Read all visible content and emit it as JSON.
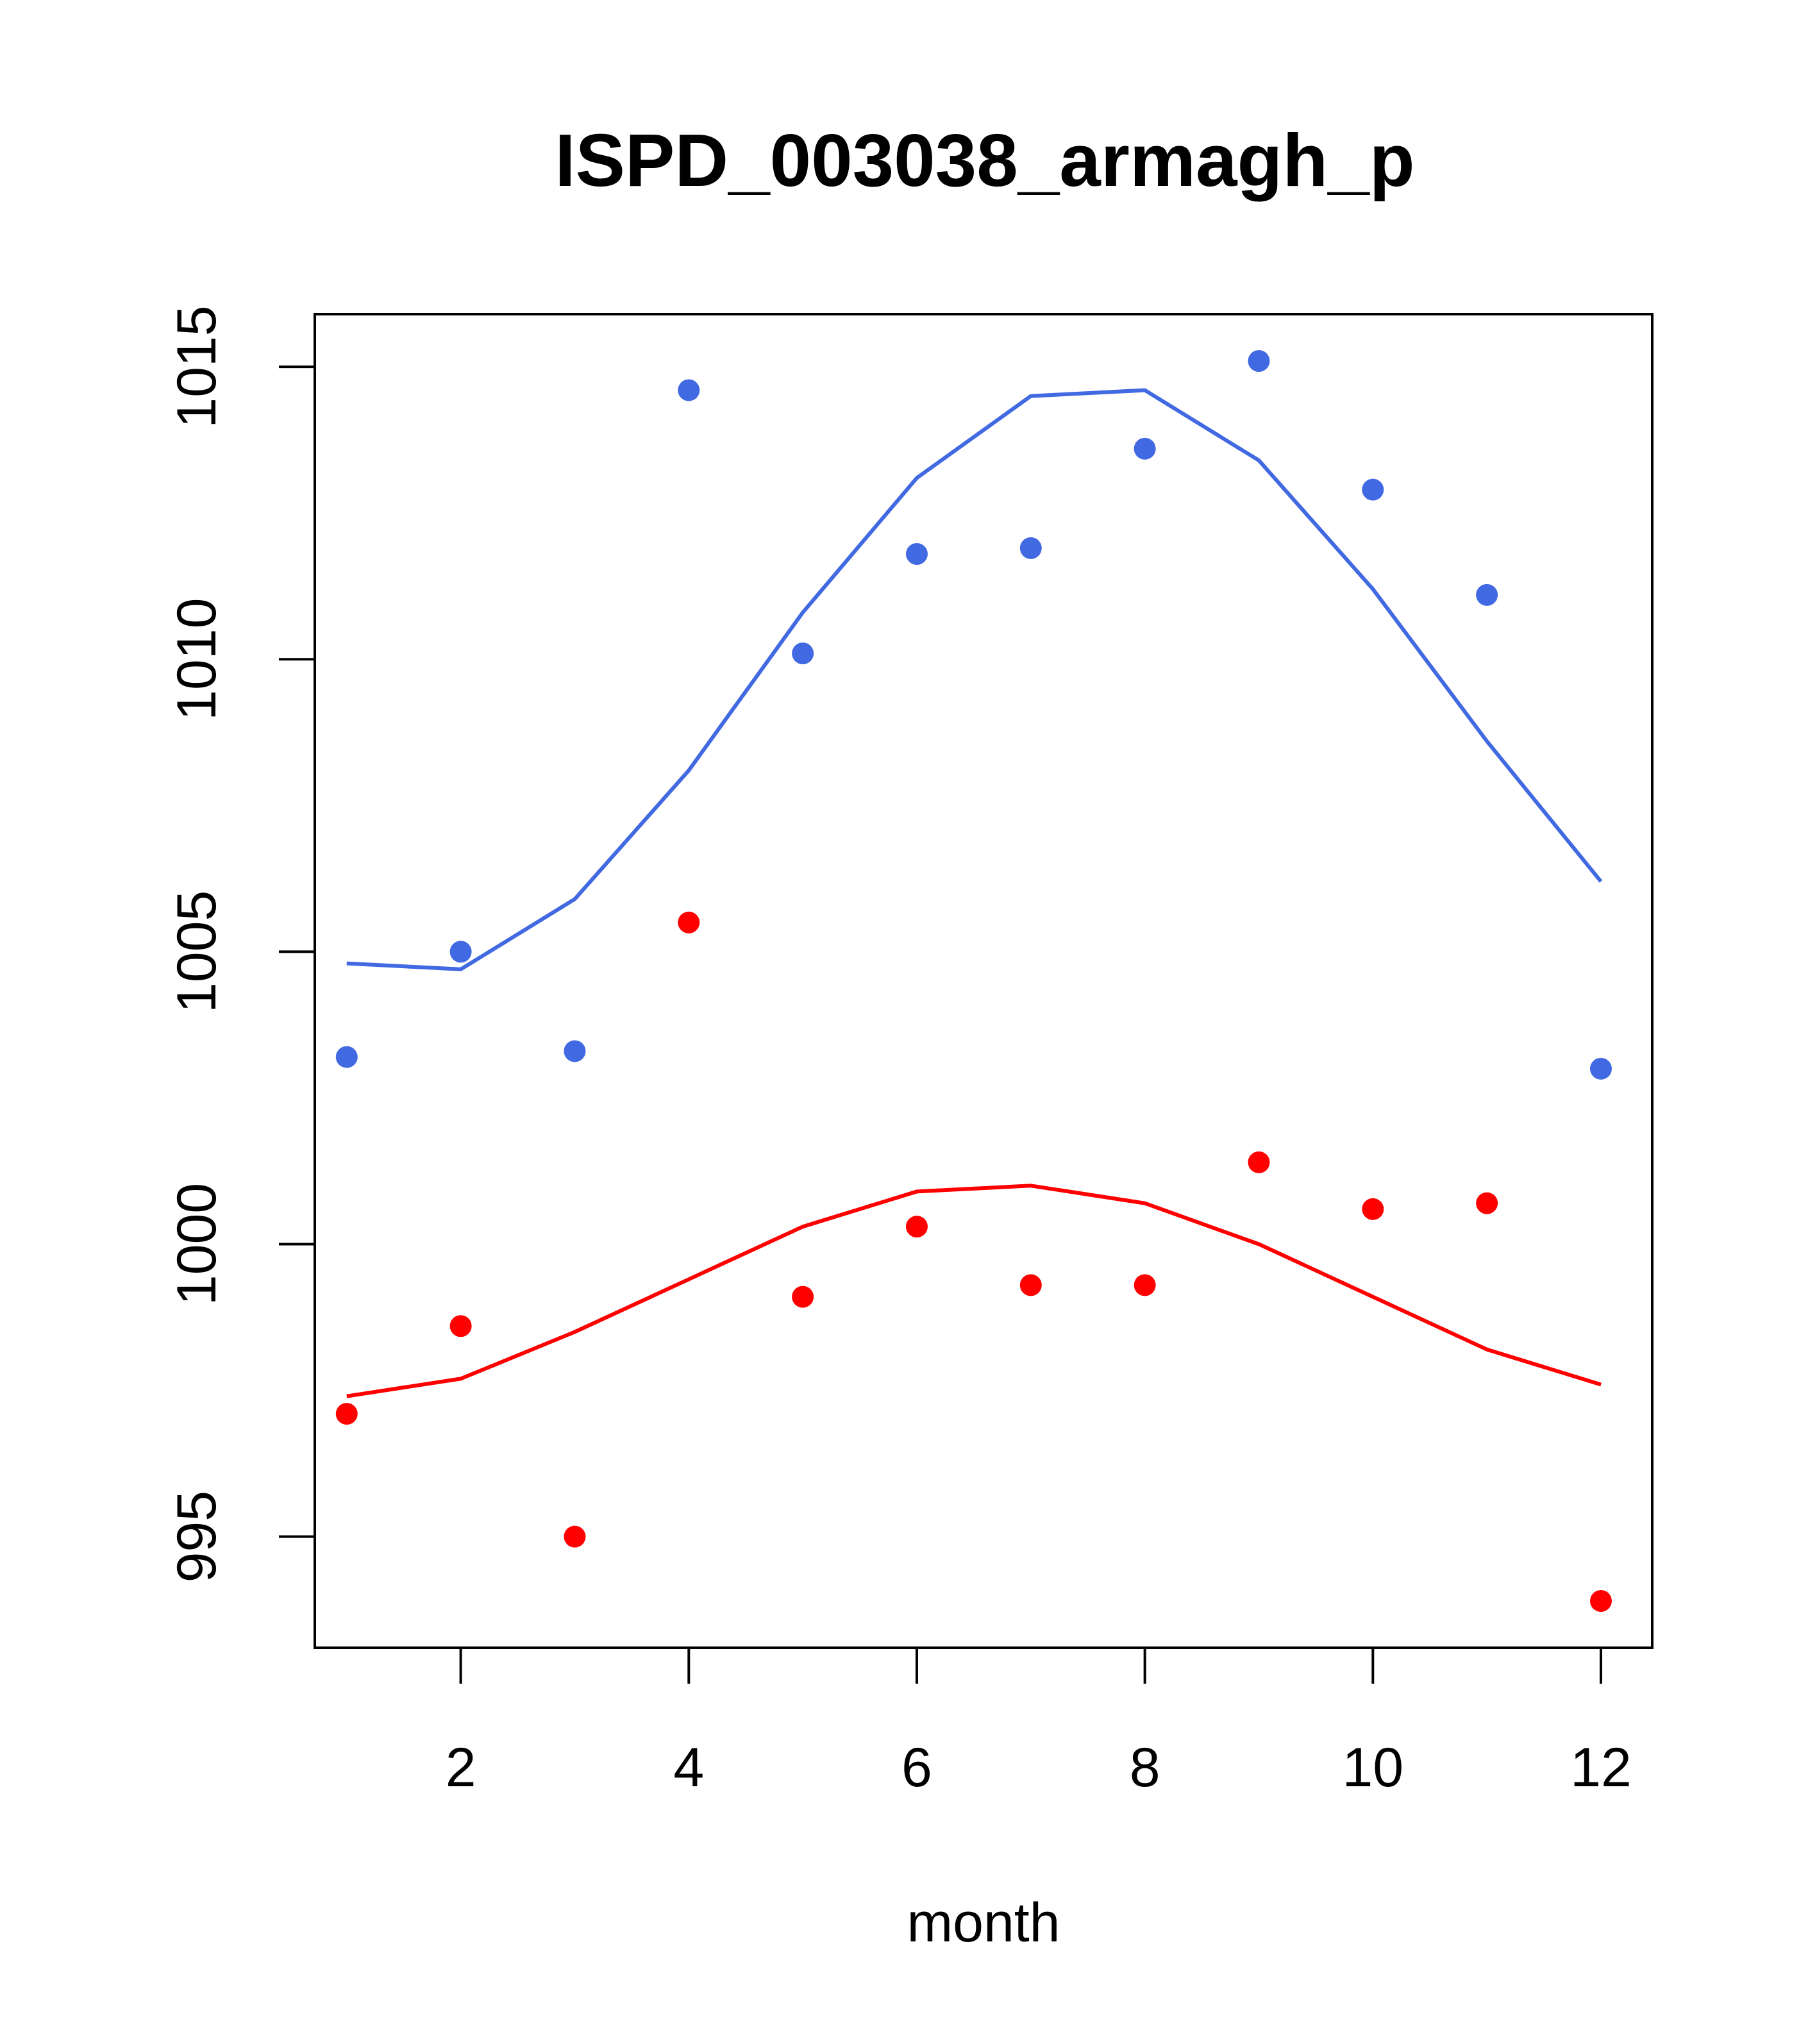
{
  "chart_data": {
    "type": "scatter",
    "title": "ISPD_003038_armagh_p",
    "xlabel": "month",
    "ylabel": "",
    "xlim": [
      0.72,
      12.45
    ],
    "ylim": [
      993.1,
      1015.9
    ],
    "xticks": [
      2,
      4,
      6,
      8,
      10,
      12
    ],
    "xtick_labels": [
      "2",
      "4",
      "6",
      "8",
      "10",
      "12"
    ],
    "yticks": [
      995,
      1000,
      1005,
      1010,
      1015
    ],
    "ytick_labels": [
      "995",
      "1000",
      "1005",
      "1010",
      "1015"
    ],
    "grid": false,
    "series": [
      {
        "name": "blue points",
        "kind": "points",
        "color": "#4169E1",
        "x": [
          1,
          2,
          3,
          4,
          5,
          6,
          7,
          8,
          9,
          10,
          11,
          12
        ],
        "values": [
          1003.2,
          1005.0,
          1003.3,
          1014.6,
          1010.1,
          1011.8,
          1011.9,
          1013.6,
          1015.1,
          1012.9,
          1011.1,
          1003.0
        ]
      },
      {
        "name": "blue line",
        "kind": "line",
        "color": "#4169E1",
        "x": [
          1,
          2,
          3,
          4,
          5,
          6,
          7,
          8,
          9,
          10,
          11,
          12
        ],
        "values": [
          1004.8,
          1004.7,
          1005.9,
          1008.1,
          1010.8,
          1013.1,
          1014.5,
          1014.6,
          1013.4,
          1011.2,
          1008.6,
          1006.2
        ]
      },
      {
        "name": "red points",
        "kind": "points",
        "color": "#FF0000",
        "x": [
          1,
          2,
          3,
          4,
          5,
          6,
          7,
          8,
          9,
          10,
          11,
          12
        ],
        "values": [
          997.1,
          998.6,
          995.0,
          1005.5,
          999.1,
          1000.3,
          999.3,
          999.3,
          1001.4,
          1000.6,
          1000.7,
          993.9
        ]
      },
      {
        "name": "red line",
        "kind": "line",
        "color": "#FF0000",
        "x": [
          1,
          2,
          3,
          4,
          5,
          6,
          7,
          8,
          9,
          10,
          11,
          12
        ],
        "values": [
          997.4,
          997.7,
          998.5,
          999.4,
          1000.3,
          1000.9,
          1001.0,
          1000.7,
          1000.0,
          999.1,
          998.2,
          997.6
        ]
      }
    ]
  }
}
